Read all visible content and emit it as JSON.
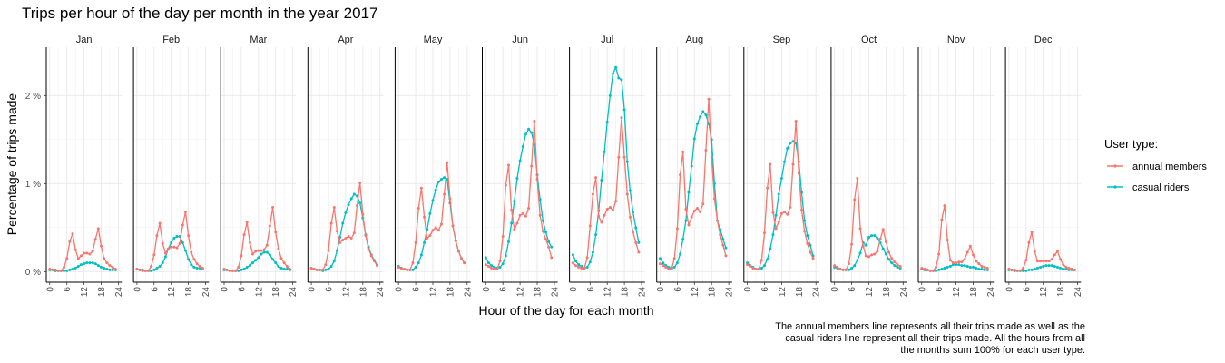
{
  "chart_data": {
    "type": "line",
    "title": "Trips per hour of the day per month in the year 2017",
    "xlabel": "Hour of the day for each month",
    "ylabel": "Percentage of trips made",
    "xlim": [
      -1.2,
      25.2
    ],
    "ylim": [
      -0.12,
      2.55
    ],
    "x_ticks": [
      0,
      6,
      12,
      18,
      24
    ],
    "y_ticks": [
      {
        "value": 0,
        "label": "0 %"
      },
      {
        "value": 1,
        "label": "1 %"
      },
      {
        "value": 2,
        "label": "2 %"
      }
    ],
    "grid": true,
    "legend": {
      "title": "User type:",
      "position": "right"
    },
    "caption": [
      "The annual members line represents all their trips made as well as the",
      "casual riders line represent all their trips made. All the hours from all",
      "the months sum 100% for each user type."
    ],
    "panels": [
      "Jan",
      "Feb",
      "Mar",
      "Apr",
      "May",
      "Jun",
      "Jul",
      "Aug",
      "Sep",
      "Oct",
      "Nov",
      "Dec"
    ],
    "x": [
      0,
      1,
      2,
      3,
      4,
      5,
      6,
      7,
      8,
      9,
      10,
      11,
      12,
      13,
      14,
      15,
      16,
      17,
      18,
      19,
      20,
      21,
      22,
      23
    ],
    "series": [
      {
        "name": "annual members",
        "color": "#F8766D",
        "values": [
          [
            0.03,
            0.02,
            0.02,
            0.01,
            0.01,
            0.05,
            0.15,
            0.34,
            0.43,
            0.25,
            0.15,
            0.18,
            0.21,
            0.21,
            0.2,
            0.23,
            0.37,
            0.49,
            0.29,
            0.15,
            0.1,
            0.07,
            0.05,
            0.03
          ],
          [
            0.03,
            0.02,
            0.01,
            0.01,
            0.01,
            0.06,
            0.19,
            0.41,
            0.55,
            0.32,
            0.21,
            0.26,
            0.28,
            0.28,
            0.27,
            0.32,
            0.53,
            0.68,
            0.41,
            0.22,
            0.14,
            0.09,
            0.06,
            0.04
          ],
          [
            0.03,
            0.02,
            0.01,
            0.01,
            0.01,
            0.05,
            0.18,
            0.42,
            0.56,
            0.33,
            0.2,
            0.23,
            0.24,
            0.24,
            0.25,
            0.3,
            0.52,
            0.73,
            0.45,
            0.26,
            0.15,
            0.1,
            0.06,
            0.03
          ],
          [
            0.04,
            0.03,
            0.02,
            0.02,
            0.02,
            0.08,
            0.24,
            0.55,
            0.73,
            0.46,
            0.33,
            0.36,
            0.38,
            0.4,
            0.38,
            0.44,
            0.75,
            1.01,
            0.65,
            0.41,
            0.26,
            0.18,
            0.12,
            0.07
          ],
          [
            0.05,
            0.04,
            0.03,
            0.02,
            0.02,
            0.1,
            0.33,
            0.72,
            0.95,
            0.62,
            0.38,
            0.41,
            0.47,
            0.5,
            0.47,
            0.54,
            0.88,
            1.24,
            0.83,
            0.52,
            0.35,
            0.23,
            0.15,
            0.1
          ],
          [
            0.08,
            0.06,
            0.04,
            0.03,
            0.03,
            0.12,
            0.4,
            0.98,
            1.21,
            0.7,
            0.48,
            0.55,
            0.64,
            0.66,
            0.63,
            0.72,
            1.2,
            1.71,
            1.05,
            0.64,
            0.46,
            0.37,
            0.28,
            0.16
          ],
          [
            0.1,
            0.07,
            0.05,
            0.04,
            0.04,
            0.16,
            0.52,
            0.88,
            1.07,
            0.63,
            0.56,
            0.64,
            0.71,
            0.73,
            0.7,
            0.8,
            1.3,
            1.75,
            1.3,
            0.88,
            0.62,
            0.45,
            0.33,
            0.22
          ],
          [
            0.09,
            0.07,
            0.05,
            0.03,
            0.03,
            0.15,
            0.49,
            1.1,
            1.36,
            0.71,
            0.53,
            0.62,
            0.69,
            0.72,
            0.68,
            0.77,
            1.38,
            1.96,
            1.3,
            0.83,
            0.58,
            0.42,
            0.3,
            0.18
          ],
          [
            0.08,
            0.06,
            0.04,
            0.03,
            0.03,
            0.13,
            0.44,
            0.95,
            1.22,
            0.67,
            0.49,
            0.57,
            0.66,
            0.68,
            0.65,
            0.73,
            1.22,
            1.71,
            1.12,
            0.7,
            0.46,
            0.32,
            0.22,
            0.15
          ],
          [
            0.07,
            0.05,
            0.03,
            0.02,
            0.02,
            0.09,
            0.31,
            0.82,
            1.06,
            0.49,
            0.29,
            0.18,
            0.17,
            0.19,
            0.2,
            0.23,
            0.37,
            0.48,
            0.34,
            0.22,
            0.15,
            0.11,
            0.08,
            0.06
          ],
          [
            0.04,
            0.03,
            0.02,
            0.01,
            0.01,
            0.05,
            0.2,
            0.59,
            0.75,
            0.36,
            0.13,
            0.1,
            0.1,
            0.11,
            0.11,
            0.14,
            0.22,
            0.29,
            0.19,
            0.12,
            0.09,
            0.06,
            0.05,
            0.04
          ],
          [
            0.03,
            0.02,
            0.02,
            0.01,
            0.01,
            0.04,
            0.13,
            0.33,
            0.45,
            0.23,
            0.12,
            0.12,
            0.12,
            0.12,
            0.12,
            0.14,
            0.19,
            0.23,
            0.14,
            0.08,
            0.05,
            0.04,
            0.03,
            0.02
          ]
        ]
      },
      {
        "name": "casual riders",
        "color": "#00BFC4",
        "values": [
          [
            0.02,
            0.02,
            0.01,
            0.01,
            0.01,
            0.01,
            0.01,
            0.02,
            0.03,
            0.04,
            0.06,
            0.08,
            0.09,
            0.1,
            0.1,
            0.1,
            0.09,
            0.07,
            0.05,
            0.04,
            0.03,
            0.02,
            0.02,
            0.02
          ],
          [
            0.03,
            0.02,
            0.02,
            0.01,
            0.01,
            0.01,
            0.02,
            0.04,
            0.06,
            0.1,
            0.17,
            0.26,
            0.33,
            0.38,
            0.4,
            0.4,
            0.33,
            0.24,
            0.14,
            0.08,
            0.05,
            0.04,
            0.04,
            0.03
          ],
          [
            0.02,
            0.02,
            0.01,
            0.01,
            0.01,
            0.01,
            0.02,
            0.03,
            0.05,
            0.07,
            0.1,
            0.13,
            0.16,
            0.2,
            0.22,
            0.22,
            0.19,
            0.14,
            0.1,
            0.06,
            0.04,
            0.03,
            0.03,
            0.02
          ],
          [
            0.04,
            0.03,
            0.02,
            0.02,
            0.01,
            0.02,
            0.03,
            0.06,
            0.12,
            0.24,
            0.39,
            0.55,
            0.67,
            0.76,
            0.83,
            0.88,
            0.86,
            0.78,
            0.61,
            0.42,
            0.28,
            0.19,
            0.13,
            0.08
          ],
          [
            0.06,
            0.04,
            0.03,
            0.02,
            0.02,
            0.02,
            0.05,
            0.1,
            0.19,
            0.33,
            0.48,
            0.66,
            0.81,
            0.93,
            1.02,
            1.05,
            1.07,
            1.05,
            0.78,
            0.52,
            0.35,
            0.23,
            0.15,
            0.1
          ],
          [
            0.16,
            0.1,
            0.07,
            0.05,
            0.04,
            0.05,
            0.09,
            0.18,
            0.34,
            0.55,
            0.8,
            1.06,
            1.26,
            1.42,
            1.56,
            1.62,
            1.58,
            1.44,
            1.1,
            0.82,
            0.58,
            0.45,
            0.34,
            0.28
          ],
          [
            0.19,
            0.12,
            0.08,
            0.06,
            0.04,
            0.05,
            0.11,
            0.22,
            0.42,
            0.69,
            1.04,
            1.36,
            1.7,
            2.0,
            2.25,
            2.32,
            2.2,
            2.18,
            1.84,
            1.25,
            0.92,
            0.68,
            0.5,
            0.33
          ],
          [
            0.15,
            0.1,
            0.07,
            0.05,
            0.04,
            0.05,
            0.1,
            0.2,
            0.37,
            0.58,
            0.9,
            1.2,
            1.51,
            1.68,
            1.76,
            1.82,
            1.78,
            1.68,
            1.5,
            1.0,
            0.58,
            0.48,
            0.37,
            0.27
          ],
          [
            0.1,
            0.07,
            0.05,
            0.03,
            0.03,
            0.04,
            0.07,
            0.14,
            0.26,
            0.42,
            0.64,
            0.88,
            1.06,
            1.25,
            1.4,
            1.46,
            1.48,
            1.46,
            1.25,
            0.9,
            0.58,
            0.41,
            0.3,
            0.18
          ],
          [
            0.05,
            0.04,
            0.03,
            0.02,
            0.02,
            0.02,
            0.04,
            0.07,
            0.13,
            0.21,
            0.33,
            0.3,
            0.39,
            0.41,
            0.41,
            0.38,
            0.33,
            0.26,
            0.2,
            0.14,
            0.1,
            0.07,
            0.05,
            0.04
          ],
          [
            0.03,
            0.02,
            0.02,
            0.01,
            0.01,
            0.01,
            0.02,
            0.03,
            0.04,
            0.05,
            0.06,
            0.08,
            0.08,
            0.08,
            0.07,
            0.07,
            0.06,
            0.05,
            0.05,
            0.04,
            0.03,
            0.03,
            0.02,
            0.02
          ],
          [
            0.02,
            0.02,
            0.01,
            0.01,
            0.01,
            0.01,
            0.01,
            0.02,
            0.02,
            0.03,
            0.04,
            0.05,
            0.06,
            0.07,
            0.07,
            0.07,
            0.06,
            0.05,
            0.04,
            0.03,
            0.03,
            0.02,
            0.02,
            0.02
          ]
        ]
      }
    ]
  }
}
